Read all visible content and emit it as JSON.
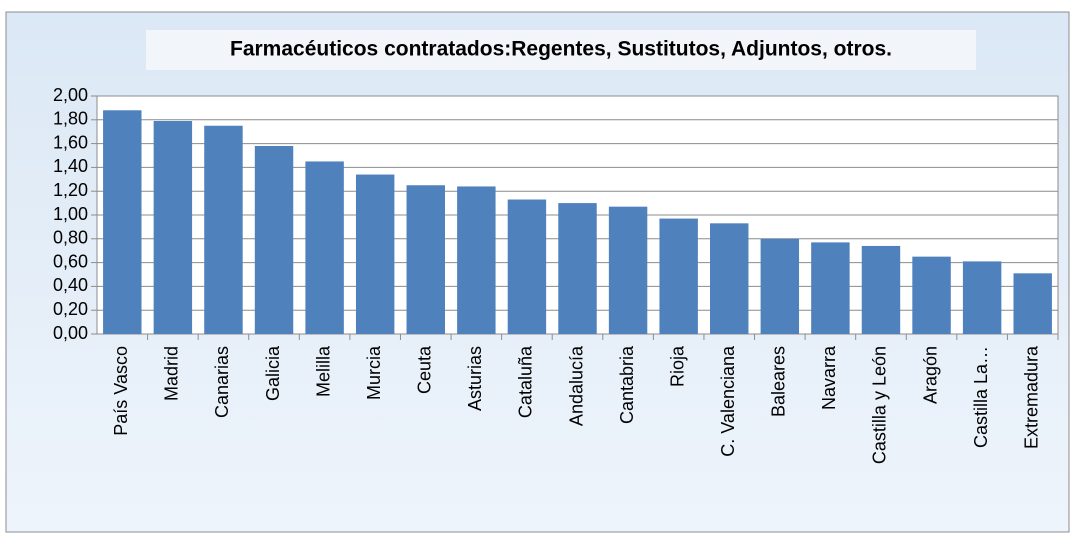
{
  "chart_data": {
    "type": "bar",
    "title": "Farmacéuticos contratados:Regentes, Sustitutos, Adjuntos, otros.",
    "categories": [
      "País Vasco",
      "Madrid",
      "Canarias",
      "Galicia",
      "Melilla",
      "Murcia",
      "Ceuta",
      "Asturias",
      "Cataluña",
      "Andalucía",
      "Cantabria",
      "Rioja",
      "C. Valenciana",
      "Baleares",
      "Navarra",
      "Castilla y León",
      "Aragón",
      "Castilla La…",
      "Extremadura"
    ],
    "values": [
      1.88,
      1.79,
      1.75,
      1.58,
      1.45,
      1.34,
      1.25,
      1.24,
      1.13,
      1.1,
      1.07,
      0.97,
      0.93,
      0.8,
      0.77,
      0.74,
      0.65,
      0.61,
      0.51
    ],
    "color": "#4f81bd",
    "ylim": [
      0,
      2
    ],
    "yticks": [
      {
        "value": 0,
        "label": "0,00"
      },
      {
        "value": 0.2,
        "label": "0,20"
      },
      {
        "value": 0.4,
        "label": "0,40"
      },
      {
        "value": 0.6,
        "label": "0,60"
      },
      {
        "value": 0.8,
        "label": "0,80"
      },
      {
        "value": 1.0,
        "label": "1,00"
      },
      {
        "value": 1.2,
        "label": "1,20"
      },
      {
        "value": 1.4,
        "label": "1,40"
      },
      {
        "value": 1.6,
        "label": "1,60"
      },
      {
        "value": 1.8,
        "label": "1,80"
      },
      {
        "value": 2.0,
        "label": "2,00"
      }
    ],
    "grid": true
  }
}
